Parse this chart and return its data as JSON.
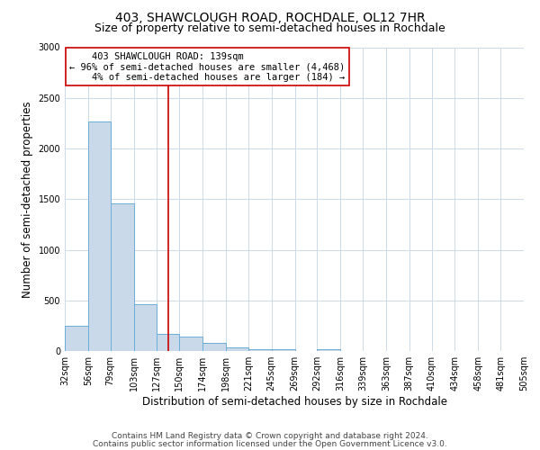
{
  "title": "403, SHAWCLOUGH ROAD, ROCHDALE, OL12 7HR",
  "subtitle": "Size of property relative to semi-detached houses in Rochdale",
  "xlabel": "Distribution of semi-detached houses by size in Rochdale",
  "ylabel": "Number of semi-detached properties",
  "bin_edges": [
    32,
    56,
    79,
    103,
    127,
    150,
    174,
    198,
    221,
    245,
    269,
    292,
    316,
    339,
    363,
    387,
    410,
    434,
    458,
    481,
    505
  ],
  "bar_heights": [
    245,
    2270,
    1460,
    460,
    170,
    140,
    80,
    40,
    15,
    15,
    0,
    15,
    0,
    0,
    0,
    0,
    0,
    0,
    0,
    0
  ],
  "bar_color": "#c9d9ea",
  "bar_edge_color": "#6baed6",
  "vline_x": 139,
  "vline_color": "#cc0000",
  "annotation_line1": "    403 SHAWCLOUGH ROAD: 139sqm",
  "annotation_line2": "← 96% of semi-detached houses are smaller (4,468)",
  "annotation_line3": "    4% of semi-detached houses are larger (184) →",
  "annotation_box_color": "#ffffff",
  "annotation_box_edge": "#cc0000",
  "ylim": [
    0,
    3000
  ],
  "yticks": [
    0,
    500,
    1000,
    1500,
    2000,
    2500,
    3000
  ],
  "tick_labels": [
    "32sqm",
    "56sqm",
    "79sqm",
    "103sqm",
    "127sqm",
    "150sqm",
    "174sqm",
    "198sqm",
    "221sqm",
    "245sqm",
    "269sqm",
    "292sqm",
    "316sqm",
    "339sqm",
    "363sqm",
    "387sqm",
    "410sqm",
    "434sqm",
    "458sqm",
    "481sqm",
    "505sqm"
  ],
  "footer_line1": "Contains HM Land Registry data © Crown copyright and database right 2024.",
  "footer_line2": "Contains public sector information licensed under the Open Government Licence v3.0.",
  "background_color": "#ffffff",
  "grid_color": "#ccd9e8",
  "title_fontsize": 10,
  "subtitle_fontsize": 9,
  "axis_label_fontsize": 8.5,
  "tick_fontsize": 7,
  "annotation_fontsize": 7.5,
  "footer_fontsize": 6.5
}
